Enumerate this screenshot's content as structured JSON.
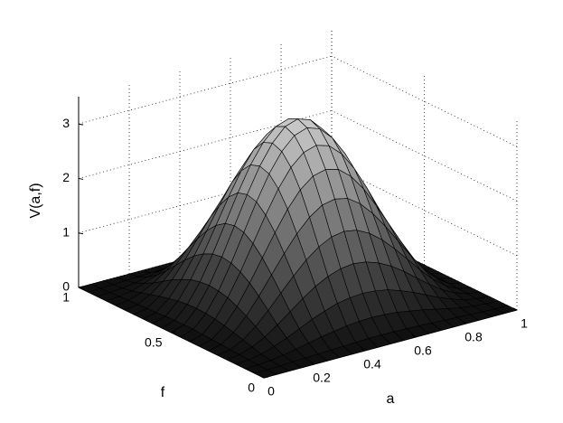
{
  "chart_data": {
    "type": "surface",
    "xlabel": "a",
    "ylabel": "f",
    "zlabel": "V(a,f)",
    "x": [
      0,
      0.05,
      0.1,
      0.15,
      0.2,
      0.25,
      0.3,
      0.35,
      0.4,
      0.45,
      0.5,
      0.55,
      0.6,
      0.65,
      0.7,
      0.75,
      0.8,
      0.85,
      0.9,
      0.95,
      1
    ],
    "y": [
      0,
      0.05,
      0.1,
      0.15,
      0.2,
      0.25,
      0.3,
      0.35,
      0.4,
      0.45,
      0.5,
      0.55,
      0.6,
      0.65,
      0.7,
      0.75,
      0.8,
      0.85,
      0.9,
      0.95,
      1
    ],
    "z": [
      [
        0,
        0,
        0,
        0,
        0,
        0,
        0,
        0,
        0,
        0,
        0,
        0,
        0,
        0,
        0,
        0,
        0,
        0,
        0,
        0,
        0
      ],
      [
        0,
        0,
        0.01,
        0.02,
        0.03,
        0.04,
        0.05,
        0.06,
        0.07,
        0.08,
        0.08,
        0.08,
        0.07,
        0.06,
        0.05,
        0.04,
        0.03,
        0.02,
        0.01,
        0,
        0
      ],
      [
        0,
        0.01,
        0.03,
        0.06,
        0.11,
        0.16,
        0.21,
        0.25,
        0.29,
        0.31,
        0.32,
        0.31,
        0.29,
        0.25,
        0.21,
        0.16,
        0.11,
        0.06,
        0.03,
        0.01,
        0
      ],
      [
        0,
        0.02,
        0.06,
        0.14,
        0.23,
        0.34,
        0.45,
        0.54,
        0.62,
        0.66,
        0.68,
        0.66,
        0.62,
        0.54,
        0.45,
        0.34,
        0.23,
        0.14,
        0.06,
        0.02,
        0
      ],
      [
        0,
        0.03,
        0.11,
        0.23,
        0.39,
        0.57,
        0.75,
        0.91,
        1.03,
        1.11,
        1.14,
        1.11,
        1.03,
        0.91,
        0.75,
        0.57,
        0.39,
        0.23,
        0.11,
        0.03,
        0
      ],
      [
        0,
        0.04,
        0.16,
        0.34,
        0.57,
        0.83,
        1.08,
        1.31,
        1.49,
        1.61,
        1.65,
        1.61,
        1.49,
        1.31,
        1.08,
        0.83,
        0.57,
        0.34,
        0.16,
        0.04,
        0
      ],
      [
        0,
        0.05,
        0.21,
        0.45,
        0.75,
        1.08,
        1.41,
        1.71,
        1.95,
        2.11,
        2.16,
        2.11,
        1.95,
        1.71,
        1.41,
        1.08,
        0.75,
        0.45,
        0.21,
        0.05,
        0
      ],
      [
        0,
        0.06,
        0.25,
        0.54,
        0.91,
        1.31,
        1.71,
        2.08,
        2.37,
        2.56,
        2.62,
        2.56,
        2.37,
        2.08,
        1.71,
        1.31,
        0.91,
        0.54,
        0.25,
        0.06,
        0
      ],
      [
        0,
        0.07,
        0.29,
        0.62,
        1.03,
        1.49,
        1.95,
        2.37,
        2.7,
        2.91,
        2.98,
        2.91,
        2.7,
        2.37,
        1.95,
        1.49,
        1.03,
        0.62,
        0.29,
        0.07,
        0
      ],
      [
        0,
        0.08,
        0.31,
        0.66,
        1.11,
        1.61,
        2.11,
        2.56,
        2.91,
        3.14,
        3.22,
        3.14,
        2.91,
        2.56,
        2.11,
        1.61,
        1.11,
        0.66,
        0.31,
        0.08,
        0
      ],
      [
        0,
        0.08,
        0.32,
        0.68,
        1.14,
        1.65,
        2.16,
        2.62,
        2.98,
        3.22,
        3.3,
        3.22,
        2.98,
        2.62,
        2.16,
        1.65,
        1.14,
        0.68,
        0.32,
        0.08,
        0
      ],
      [
        0,
        0.08,
        0.31,
        0.66,
        1.11,
        1.61,
        2.11,
        2.56,
        2.91,
        3.14,
        3.22,
        3.14,
        2.91,
        2.56,
        2.11,
        1.61,
        1.11,
        0.66,
        0.31,
        0.08,
        0
      ],
      [
        0,
        0.07,
        0.29,
        0.62,
        1.03,
        1.49,
        1.95,
        2.37,
        2.7,
        2.91,
        2.98,
        2.91,
        2.7,
        2.37,
        1.95,
        1.49,
        1.03,
        0.62,
        0.29,
        0.07,
        0
      ],
      [
        0,
        0.06,
        0.25,
        0.54,
        0.91,
        1.31,
        1.71,
        2.08,
        2.37,
        2.56,
        2.62,
        2.56,
        2.37,
        2.08,
        1.71,
        1.31,
        0.91,
        0.54,
        0.25,
        0.06,
        0
      ],
      [
        0,
        0.05,
        0.21,
        0.45,
        0.75,
        1.08,
        1.41,
        1.71,
        1.95,
        2.11,
        2.16,
        2.11,
        1.95,
        1.71,
        1.41,
        1.08,
        0.75,
        0.45,
        0.21,
        0.05,
        0
      ],
      [
        0,
        0.04,
        0.16,
        0.34,
        0.57,
        0.83,
        1.08,
        1.31,
        1.49,
        1.61,
        1.65,
        1.61,
        1.49,
        1.31,
        1.08,
        0.83,
        0.57,
        0.34,
        0.16,
        0.04,
        0
      ],
      [
        0,
        0.03,
        0.11,
        0.23,
        0.39,
        0.57,
        0.75,
        0.91,
        1.03,
        1.11,
        1.14,
        1.11,
        1.03,
        0.91,
        0.75,
        0.57,
        0.39,
        0.23,
        0.11,
        0.03,
        0
      ],
      [
        0,
        0.02,
        0.06,
        0.14,
        0.23,
        0.34,
        0.45,
        0.54,
        0.62,
        0.66,
        0.68,
        0.66,
        0.62,
        0.54,
        0.45,
        0.34,
        0.23,
        0.14,
        0.06,
        0.02,
        0
      ],
      [
        0,
        0.01,
        0.03,
        0.06,
        0.11,
        0.16,
        0.21,
        0.25,
        0.29,
        0.31,
        0.32,
        0.31,
        0.29,
        0.25,
        0.21,
        0.16,
        0.11,
        0.06,
        0.03,
        0.01,
        0
      ],
      [
        0,
        0,
        0.01,
        0.02,
        0.03,
        0.04,
        0.05,
        0.06,
        0.07,
        0.08,
        0.08,
        0.08,
        0.07,
        0.06,
        0.05,
        0.04,
        0.03,
        0.02,
        0.01,
        0,
        0
      ],
      [
        0,
        0,
        0,
        0,
        0,
        0,
        0,
        0,
        0,
        0,
        0,
        0,
        0,
        0,
        0,
        0,
        0,
        0,
        0,
        0,
        0
      ]
    ],
    "xlim": [
      0,
      1
    ],
    "xticks": [
      0,
      0.2,
      0.4,
      0.6,
      0.8,
      1
    ],
    "ylim": [
      0,
      1
    ],
    "yticks": [
      0,
      0.5,
      1
    ],
    "zlim": [
      0,
      3.5
    ],
    "zticks": [
      0,
      1,
      2,
      3
    ],
    "grid": true,
    "colormap": "gray",
    "edgecolor": "#000000"
  }
}
